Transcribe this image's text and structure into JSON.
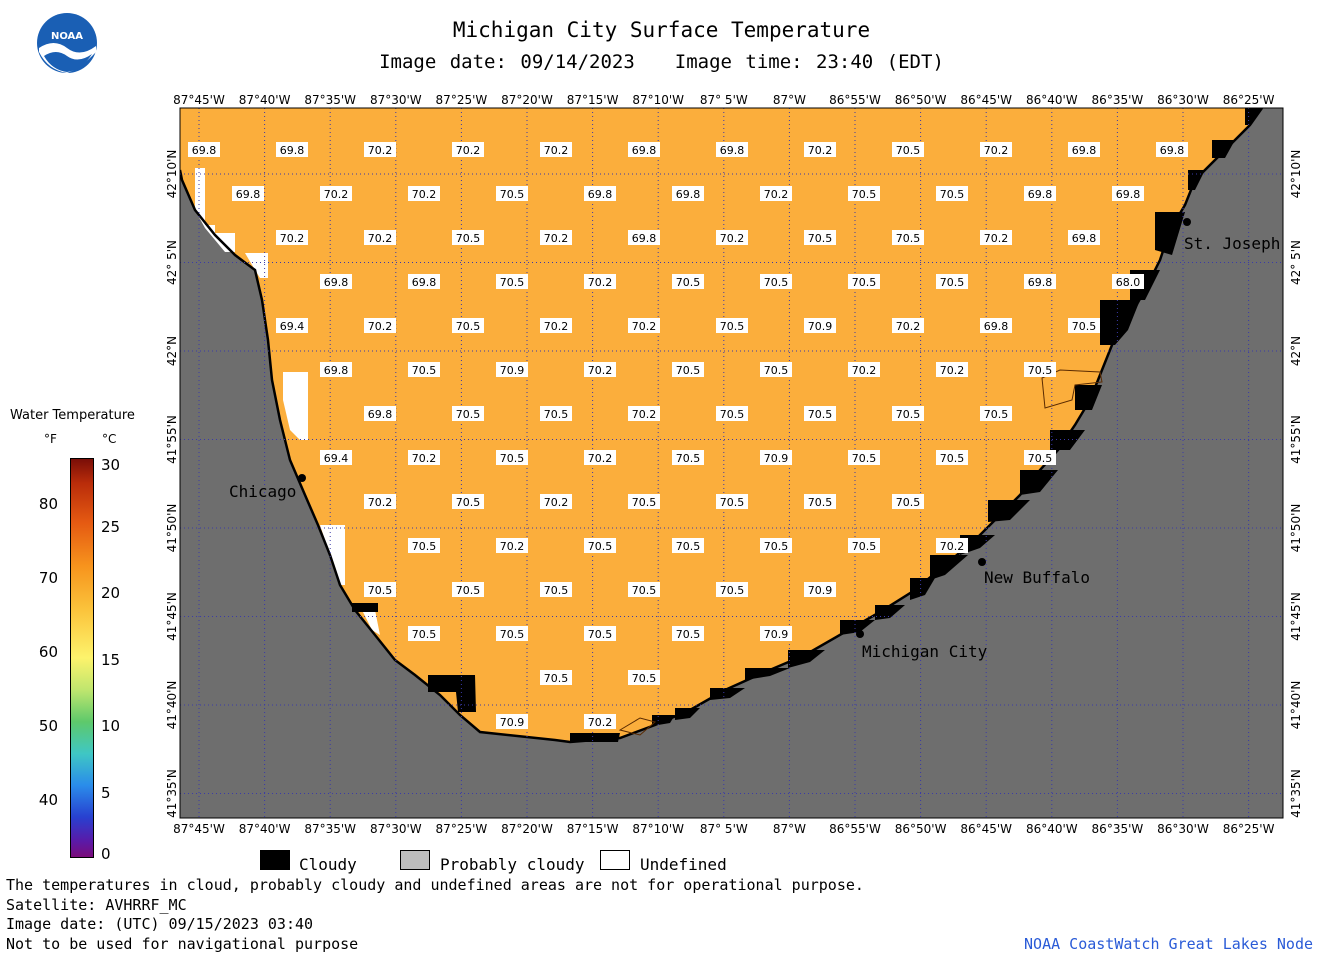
{
  "header": {
    "title": "Michigan City Surface Temperature",
    "image_date": "Image date: 09/14/2023",
    "image_time": "Image time: 23:40 (EDT)"
  },
  "logo": {
    "text": "NOAA"
  },
  "map": {
    "lon_labels": [
      "87°45'W",
      "87°40'W",
      "87°35'W",
      "87°30'W",
      "87°25'W",
      "87°20'W",
      "87°15'W",
      "87°10'W",
      "87° 5'W",
      "87°W",
      "86°55'W",
      "86°50'W",
      "86°45'W",
      "86°40'W",
      "86°35'W",
      "86°30'W",
      "86°25'W"
    ],
    "lat_labels": [
      "42°10'N",
      "42° 5'N",
      "42°N",
      "41°55'N",
      "41°50'N",
      "41°45'N",
      "41°40'N",
      "41°35'N"
    ],
    "cities": [
      "Chicago",
      "St. Joseph",
      "New Buffalo",
      "Michigan City"
    ],
    "colors": {
      "water": "#fbae3c",
      "land": "#6e6e6e",
      "cloud": "#000000",
      "undefined": "#ffffff",
      "grid": "#3a3aa8"
    },
    "temperature_rows": [
      [
        "69.8",
        "69.8",
        "70.2",
        "70.2",
        "70.2",
        "69.8",
        "69.8",
        "70.2",
        "70.5",
        "70.2",
        "69.8",
        "69.8"
      ],
      [
        "69.8",
        "70.2",
        "70.2",
        "70.5",
        "69.8",
        "69.8",
        "70.2",
        "70.5",
        "70.5",
        "69.8",
        "69.8"
      ],
      [
        "70.2",
        "70.2",
        "70.5",
        "70.2",
        "69.8",
        "70.2",
        "70.5",
        "70.5",
        "70.2",
        "69.8"
      ],
      [
        "69.8",
        "69.8",
        "70.5",
        "70.2",
        "70.5",
        "70.5",
        "70.5",
        "70.5",
        "69.8",
        "68.0"
      ],
      [
        "69.4",
        "70.2",
        "70.5",
        "70.2",
        "70.2",
        "70.5",
        "70.9",
        "70.2",
        "69.8",
        "70.5"
      ],
      [
        "69.8",
        "70.5",
        "70.9",
        "70.2",
        "70.5",
        "70.5",
        "70.2",
        "70.2",
        "70.5"
      ],
      [
        "69.8",
        "70.5",
        "70.5",
        "70.2",
        "70.5",
        "70.5",
        "70.5",
        "70.5"
      ],
      [
        "69.4",
        "70.2",
        "70.5",
        "70.2",
        "70.5",
        "70.9",
        "70.5",
        "70.5",
        "70.5"
      ],
      [
        "70.2",
        "70.5",
        "70.2",
        "70.5",
        "70.5",
        "70.5",
        "70.5"
      ],
      [
        "70.5",
        "70.2",
        "70.5",
        "70.5",
        "70.5",
        "70.5",
        "70.2"
      ],
      [
        "70.5",
        "70.5",
        "70.5",
        "70.5",
        "70.5",
        "70.9"
      ],
      [
        "70.5",
        "70.5",
        "70.5",
        "70.5",
        "70.9"
      ],
      [
        "70.5",
        "70.5"
      ],
      [
        "70.9",
        "70.2"
      ]
    ]
  },
  "legend": {
    "title": "Water Temperature",
    "unit_f": "°F",
    "unit_c": "°C",
    "f_ticks": [
      "80",
      "70",
      "60",
      "50",
      "40"
    ],
    "c_ticks": [
      "30",
      "25",
      "20",
      "15",
      "10",
      "5",
      "0"
    ],
    "cloudy": "Cloudy",
    "probably_cloudy": "Probably cloudy",
    "undefined": "Undefined"
  },
  "footer": {
    "note": "The temperatures in cloud, probably cloudy and undefined areas are not for operational purpose.",
    "satellite": "Satellite: AVHRRF_MC",
    "utc_date": "Image date: (UTC) 09/15/2023  03:40",
    "disclaimer": "Not to be used for navigational purpose",
    "credit": "NOAA CoastWatch Great Lakes Node"
  }
}
